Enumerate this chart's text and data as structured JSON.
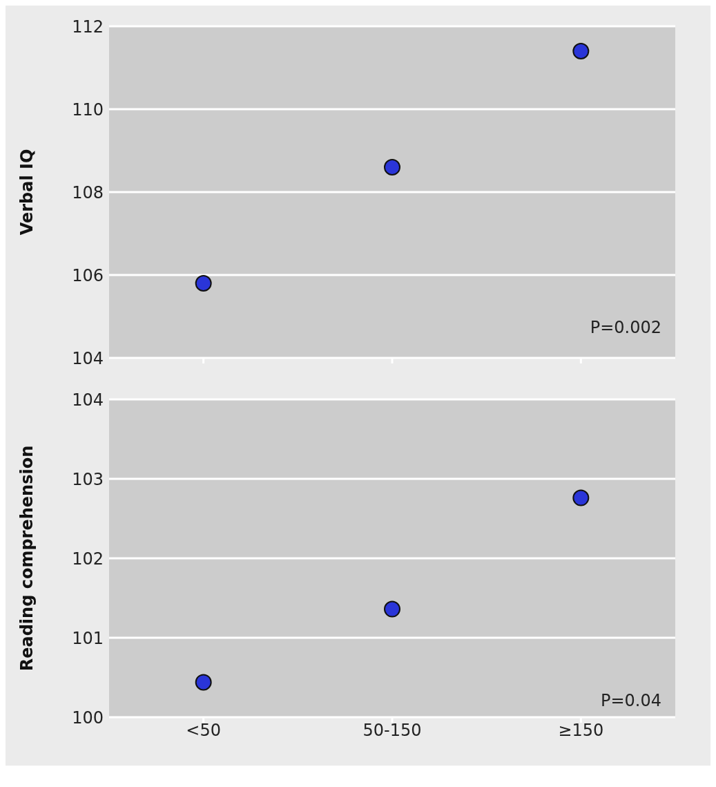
{
  "chart_data": [
    {
      "type": "scatter",
      "ylabel": "Verbal IQ",
      "categories": [
        null,
        null,
        null
      ],
      "values": [
        105.8,
        108.6,
        111.4
      ],
      "color": "#2a35d8",
      "marker": "circle",
      "ylim": [
        104,
        112
      ],
      "yticks": [
        104,
        106,
        108,
        110,
        112
      ],
      "grid": "y",
      "tick_labels": "y",
      "annotations": [
        "P=0.002"
      ]
    },
    {
      "type": "scatter",
      "ylabel": "Reading comprehension",
      "categories": [
        "<50",
        "50-150",
        "≥150"
      ],
      "values": [
        100.44,
        101.36,
        102.76
      ],
      "color": "#2a35d8",
      "marker": "circle",
      "ylim": [
        100,
        104
      ],
      "yticks": [
        100,
        101,
        102,
        103,
        104
      ],
      "grid": "y",
      "annotations": [
        "P=0.04"
      ]
    }
  ]
}
